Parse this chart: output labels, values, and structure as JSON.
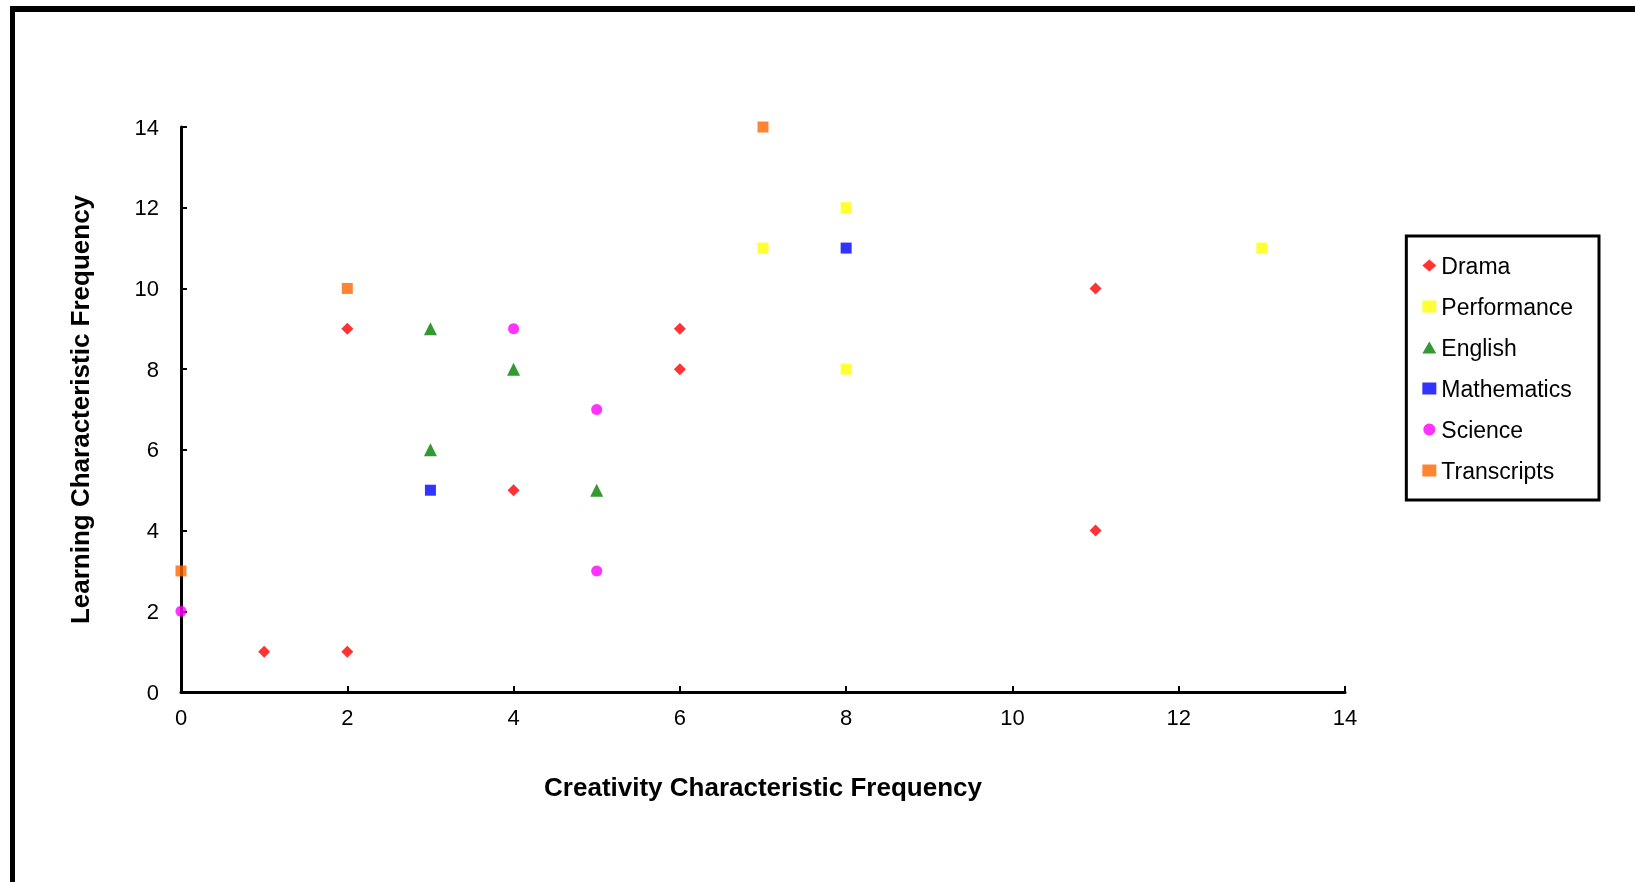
{
  "chart_data": {
    "type": "scatter",
    "xlabel": "Creativity Characteristic Frequency",
    "ylabel": "Learning Characteristic Frequency",
    "xlim": [
      0,
      14
    ],
    "xticks": [
      0,
      2,
      4,
      6,
      8,
      10,
      12,
      14
    ],
    "ylim": [
      0,
      14
    ],
    "yticks": [
      0,
      2,
      4,
      6,
      8,
      10,
      12,
      14
    ],
    "grid": false,
    "legend": "right",
    "series": [
      {
        "name": "Drama",
        "color": "#ff0000",
        "marker": "diamond",
        "x": [
          2,
          1,
          2,
          4,
          6,
          6,
          11,
          11
        ],
        "values": [
          9,
          1,
          1,
          5,
          9,
          8,
          10,
          4
        ]
      },
      {
        "name": "Performance",
        "color": "#ffff00",
        "marker": "square",
        "x": [
          7,
          8,
          8,
          13
        ],
        "values": [
          11,
          12,
          8,
          11
        ]
      },
      {
        "name": "English",
        "color": "#008000",
        "marker": "triangle",
        "x": [
          3,
          4,
          3,
          5
        ],
        "values": [
          9,
          8,
          6,
          5
        ]
      },
      {
        "name": "Mathematics",
        "color": "#0000ff",
        "marker": "square",
        "x": [
          3,
          8
        ],
        "values": [
          5,
          11
        ]
      },
      {
        "name": "Science",
        "color": "#ff00ff",
        "marker": "circle",
        "x": [
          4,
          5,
          5,
          0
        ],
        "values": [
          9,
          7,
          3,
          2
        ]
      },
      {
        "name": "Transcripts",
        "color": "#ff6600",
        "marker": "square",
        "x": [
          2,
          7,
          0
        ],
        "values": [
          10,
          14,
          3
        ]
      }
    ]
  }
}
